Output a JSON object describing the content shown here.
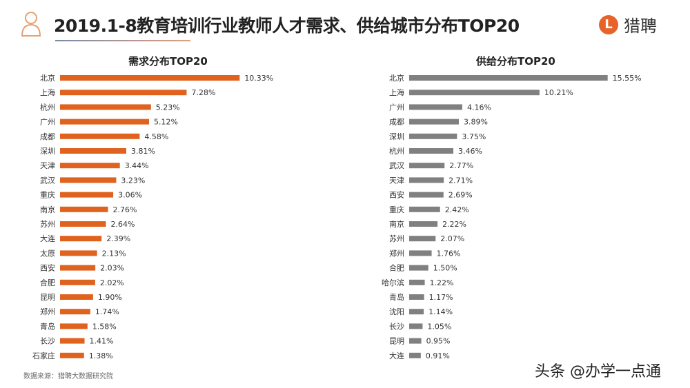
{
  "header": {
    "title": "2019.1-8教育培训行业教师人才需求、供给城市分布TOP20",
    "logo_text": "猎聘",
    "logo_mark": "L"
  },
  "colors": {
    "demand": "#e0621f",
    "supply": "#808080"
  },
  "chart_data": [
    {
      "type": "bar",
      "orientation": "horizontal",
      "title": "需求分布TOP20",
      "categories": [
        "北京",
        "上海",
        "杭州",
        "广州",
        "成都",
        "深圳",
        "天津",
        "武汉",
        "重庆",
        "南京",
        "苏州",
        "大连",
        "太原",
        "西安",
        "合肥",
        "昆明",
        "郑州",
        "青岛",
        "长沙",
        "石家庄"
      ],
      "values": [
        10.33,
        7.28,
        5.23,
        5.12,
        4.58,
        3.81,
        3.44,
        3.23,
        3.06,
        2.76,
        2.64,
        2.39,
        2.13,
        2.03,
        2.02,
        1.9,
        1.74,
        1.58,
        1.41,
        1.38
      ],
      "labels": [
        "10.33%",
        "7.28%",
        "5.23%",
        "5.12%",
        "4.58%",
        "3.81%",
        "3.44%",
        "3.23%",
        "3.06%",
        "2.76%",
        "2.64%",
        "2.39%",
        "2.13%",
        "2.03%",
        "2.02%",
        "1.90%",
        "1.74%",
        "1.58%",
        "1.41%",
        "1.38%"
      ],
      "unit": "%",
      "grid": false
    },
    {
      "type": "bar",
      "orientation": "horizontal",
      "title": "供给分布TOP20",
      "categories": [
        "北京",
        "上海",
        "广州",
        "成都",
        "深圳",
        "杭州",
        "武汉",
        "天津",
        "西安",
        "重庆",
        "南京",
        "苏州",
        "郑州",
        "合肥",
        "哈尔滨",
        "青岛",
        "沈阳",
        "长沙",
        "昆明",
        "大连"
      ],
      "values": [
        15.55,
        10.21,
        4.16,
        3.89,
        3.75,
        3.46,
        2.77,
        2.71,
        2.69,
        2.42,
        2.22,
        2.07,
        1.76,
        1.5,
        1.22,
        1.17,
        1.14,
        1.05,
        0.95,
        0.91
      ],
      "labels": [
        "15.55%",
        "10.21%",
        "4.16%",
        "3.89%",
        "3.75%",
        "3.46%",
        "2.77%",
        "2.71%",
        "2.69%",
        "2.42%",
        "2.22%",
        "2.07%",
        "1.76%",
        "1.50%",
        "1.22%",
        "1.17%",
        "1.14%",
        "1.05%",
        "0.95%",
        "0.91%"
      ],
      "unit": "%",
      "grid": false
    }
  ],
  "footer": {
    "source": "数据来源：猎聘大数据研究院",
    "watermark": "头条 @办学一点通"
  }
}
